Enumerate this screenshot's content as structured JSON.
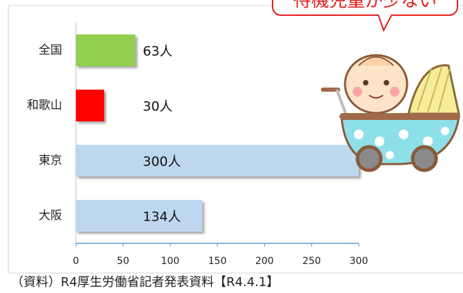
{
  "chart_data": {
    "type": "hbar",
    "categories": [
      "全国",
      "和歌山",
      "東京",
      "大阪"
    ],
    "values": [
      63,
      30,
      300,
      134
    ],
    "value_labels": [
      "63人",
      "30人",
      "300人",
      "134人"
    ],
    "colors": [
      "#92d050",
      "#ff0000",
      "#bdd7ee",
      "#bdd7ee"
    ],
    "xlim": [
      0,
      300
    ],
    "xticks": [
      0,
      50,
      100,
      150,
      200,
      250,
      300
    ],
    "grid": false,
    "annotation": "待機児童が少ない",
    "source": "（資料）R4厚生労働省記者発表資料【R4.4.1】"
  }
}
